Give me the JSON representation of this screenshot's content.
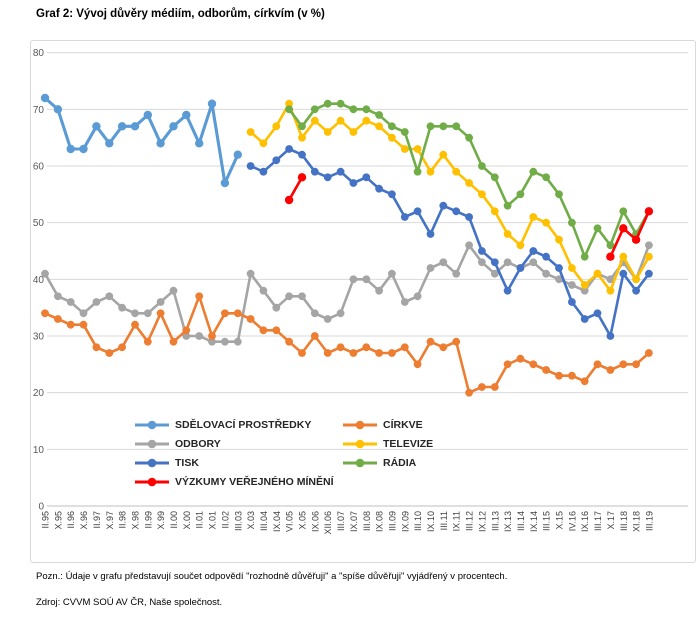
{
  "footer": {
    "note": "Pozn.: Údaje v grafu představují součet odpovědí \"rozhodně důvěřuji\" a \"spíše důvěřuji\" vyjádřený v procentech.",
    "source": "Zdroj: CVVM SOÚ AV ČR, Naše společnost."
  },
  "chart_data": {
    "type": "line",
    "title": "Graf 2: Vývoj důvěry médiím, odborům, církvím (v %)",
    "xlabel": "",
    "ylabel": "",
    "ylim": [
      0,
      80
    ],
    "ytick_step": 10,
    "grid": true,
    "legend_position": "inside-bottom",
    "categories": [
      "II.95",
      "X.95",
      "II.96",
      "X.96",
      "II.97",
      "X.97",
      "II.98",
      "X.98",
      "II.99",
      "X.99",
      "II.00",
      "X.00",
      "II.01",
      "X.01",
      "II.02",
      "III.03",
      "X.03",
      "III.04",
      "IX.04",
      "VI.05",
      "X.05",
      "IX.06",
      "XII.06",
      "III.07",
      "IX.07",
      "III.08",
      "IX.08",
      "III.09",
      "IX.09",
      "III.10",
      "IX.10",
      "III.11",
      "IX.11",
      "III.12",
      "IX.12",
      "III.13",
      "IX.13",
      "III.14",
      "IX.14",
      "III.15",
      "X.15",
      "IV.16",
      "IX.16",
      "III.17",
      "X.17",
      "III.18",
      "XI.18",
      "III.19"
    ],
    "series": [
      {
        "name": "SDĚLOVACÍ PROSTŘEDKY",
        "color": "#5B9BD5",
        "values": [
          72,
          70,
          63,
          63,
          67,
          64,
          67,
          67,
          69,
          64,
          67,
          69,
          64,
          71,
          57,
          62,
          null,
          null,
          null,
          null,
          null,
          null,
          null,
          null,
          null,
          null,
          null,
          null,
          null,
          null,
          null,
          null,
          null,
          null,
          null,
          null,
          null,
          null,
          null,
          null,
          null,
          null,
          null,
          null,
          null,
          null,
          null,
          null
        ]
      },
      {
        "name": "CÍRKVE",
        "color": "#ED7D31",
        "values": [
          34,
          33,
          32,
          32,
          28,
          27,
          28,
          32,
          29,
          34,
          29,
          31,
          37,
          30,
          34,
          34,
          33,
          31,
          31,
          29,
          27,
          30,
          27,
          28,
          27,
          28,
          27,
          27,
          28,
          25,
          29,
          28,
          29,
          20,
          21,
          21,
          25,
          26,
          25,
          24,
          23,
          23,
          22,
          25,
          24,
          25,
          25,
          27
        ]
      },
      {
        "name": "ODBORY",
        "color": "#A5A5A5",
        "values": [
          41,
          37,
          36,
          34,
          36,
          37,
          35,
          34,
          34,
          36,
          38,
          30,
          30,
          29,
          29,
          29,
          41,
          38,
          35,
          37,
          37,
          34,
          33,
          34,
          40,
          40,
          38,
          41,
          36,
          37,
          42,
          43,
          41,
          46,
          43,
          41,
          43,
          42,
          43,
          41,
          40,
          39,
          38,
          41,
          40,
          43,
          40,
          46
        ]
      },
      {
        "name": "TELEVIZE",
        "color": "#FFC000",
        "values": [
          null,
          null,
          null,
          null,
          null,
          null,
          null,
          null,
          null,
          null,
          null,
          null,
          null,
          null,
          null,
          null,
          66,
          64,
          67,
          71,
          65,
          68,
          66,
          68,
          66,
          68,
          67,
          65,
          63,
          63,
          59,
          62,
          59,
          57,
          55,
          52,
          48,
          46,
          51,
          50,
          47,
          42,
          39,
          41,
          38,
          44,
          40,
          44
        ]
      },
      {
        "name": "TISK",
        "color": "#4472C4",
        "values": [
          null,
          null,
          null,
          null,
          null,
          null,
          null,
          null,
          null,
          null,
          null,
          null,
          null,
          null,
          null,
          null,
          60,
          59,
          61,
          63,
          62,
          59,
          58,
          59,
          57,
          58,
          56,
          55,
          51,
          52,
          48,
          53,
          52,
          51,
          45,
          43,
          38,
          42,
          45,
          44,
          42,
          36,
          33,
          34,
          30,
          41,
          38,
          41
        ]
      },
      {
        "name": "RÁDIA",
        "color": "#70AD47",
        "values": [
          null,
          null,
          null,
          null,
          null,
          null,
          null,
          null,
          null,
          null,
          null,
          null,
          null,
          null,
          null,
          null,
          null,
          null,
          null,
          70,
          67,
          70,
          71,
          71,
          70,
          70,
          69,
          67,
          66,
          59,
          67,
          67,
          67,
          65,
          60,
          58,
          53,
          55,
          59,
          58,
          55,
          50,
          44,
          49,
          46,
          52,
          48,
          52
        ]
      },
      {
        "name": "VÝZKUMY VEŘEJNÉHO MÍNĚNÍ",
        "color": "#FF0000",
        "values": [
          null,
          null,
          null,
          null,
          null,
          null,
          null,
          null,
          null,
          null,
          null,
          null,
          null,
          null,
          null,
          null,
          null,
          null,
          null,
          54,
          58,
          null,
          null,
          null,
          null,
          null,
          null,
          null,
          null,
          null,
          null,
          null,
          null,
          null,
          null,
          null,
          null,
          null,
          null,
          null,
          null,
          null,
          null,
          null,
          44,
          49,
          47,
          52
        ]
      }
    ]
  }
}
